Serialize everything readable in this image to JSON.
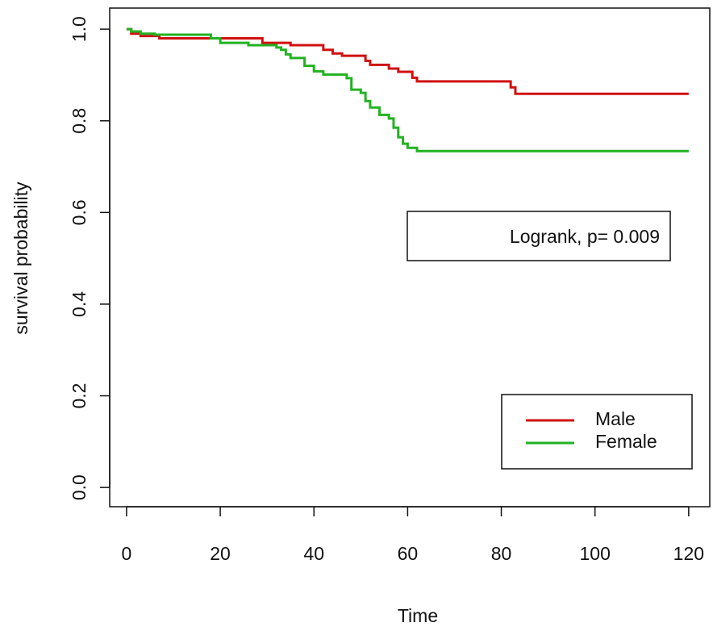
{
  "chart_data": {
    "type": "step",
    "xlabel": "Time",
    "ylabel": "survival probability",
    "annotation": "Logrank, p= 0.009",
    "xlim": [
      -3.6,
      124.5
    ],
    "ylim": [
      -0.042,
      1.046
    ],
    "xticks": [
      0,
      20,
      40,
      60,
      80,
      100,
      120
    ],
    "yticks": [
      {
        "value": 0,
        "label": "0.0"
      },
      0.2,
      0.4,
      0.6,
      0.8,
      {
        "value": 1,
        "label": "1.0"
      }
    ],
    "legend_position": "bottom-right",
    "series": [
      {
        "name": "Male",
        "color": "#d01010",
        "x": [
          0,
          1,
          3,
          7,
          29,
          35,
          42,
          44,
          46,
          51,
          52,
          56,
          58,
          61,
          62,
          82,
          83,
          120
        ],
        "values": [
          1.0,
          0.99,
          0.985,
          0.98,
          0.97,
          0.965,
          0.955,
          0.947,
          0.942,
          0.931,
          0.922,
          0.914,
          0.907,
          0.894,
          0.886,
          0.873,
          0.859,
          0.859
        ]
      },
      {
        "name": "Female",
        "color": "#22b222",
        "x": [
          0,
          1,
          3,
          6,
          18,
          20,
          26,
          32,
          33,
          34,
          35,
          38,
          40,
          42,
          47,
          48,
          50,
          51,
          52,
          54,
          56,
          57,
          58,
          59,
          60,
          62,
          120
        ],
        "values": [
          1.0,
          0.995,
          0.99,
          0.988,
          0.98,
          0.97,
          0.965,
          0.96,
          0.955,
          0.945,
          0.937,
          0.92,
          0.908,
          0.901,
          0.893,
          0.868,
          0.861,
          0.843,
          0.829,
          0.813,
          0.805,
          0.785,
          0.764,
          0.75,
          0.741,
          0.734,
          0.734
        ]
      }
    ]
  }
}
